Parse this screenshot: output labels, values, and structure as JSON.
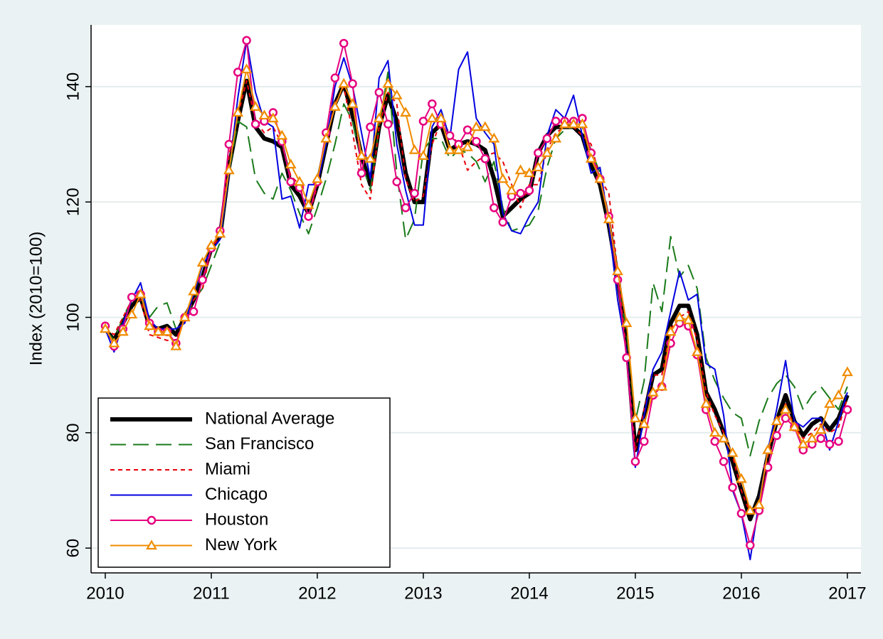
{
  "chart_data": {
    "type": "line",
    "y_label": "Index (2010=100)",
    "x": [
      2010,
      2010.083,
      2010.167,
      2010.25,
      2010.333,
      2010.417,
      2010.5,
      2010.583,
      2010.667,
      2010.75,
      2010.833,
      2010.917,
      2011,
      2011.083,
      2011.167,
      2011.25,
      2011.333,
      2011.417,
      2011.5,
      2011.583,
      2011.667,
      2011.75,
      2011.833,
      2011.917,
      2012,
      2012.083,
      2012.167,
      2012.25,
      2012.333,
      2012.417,
      2012.5,
      2012.583,
      2012.667,
      2012.75,
      2012.833,
      2012.917,
      2013,
      2013.083,
      2013.167,
      2013.25,
      2013.333,
      2013.417,
      2013.5,
      2013.583,
      2013.667,
      2013.75,
      2013.833,
      2013.917,
      2014,
      2014.083,
      2014.167,
      2014.25,
      2014.333,
      2014.417,
      2014.5,
      2014.583,
      2014.667,
      2014.75,
      2014.833,
      2014.917,
      2015,
      2015.083,
      2015.167,
      2015.25,
      2015.333,
      2015.417,
      2015.5,
      2015.583,
      2015.667,
      2015.75,
      2015.833,
      2015.917,
      2016,
      2016.083,
      2016.167,
      2016.25,
      2016.333,
      2016.417,
      2016.5,
      2016.583,
      2016.667,
      2016.75,
      2016.833,
      2016.917,
      2017
    ],
    "series": [
      {
        "name": "National Average",
        "color": "#000000",
        "dash": "solid",
        "marker": "none",
        "values": [
          98,
          96,
          99,
          102,
          103.5,
          98.5,
          98,
          98.5,
          97,
          100,
          103,
          107,
          112,
          114,
          126,
          134,
          141,
          133,
          131,
          130.5,
          129.5,
          123,
          121,
          118,
          123,
          130,
          137,
          140.5,
          135,
          128,
          123,
          133,
          138.5,
          134,
          125,
          120,
          120,
          132,
          133.5,
          129,
          130,
          130.5,
          130,
          129,
          124,
          117.5,
          119,
          120.5,
          121.5,
          128.5,
          131.5,
          133,
          133,
          133,
          131.5,
          126.5,
          123,
          116,
          107,
          96,
          77,
          83,
          90,
          91,
          99,
          102,
          102,
          97,
          87,
          84,
          80,
          75,
          70,
          65,
          69,
          76,
          82,
          86.5,
          82,
          79.5,
          81.5,
          82.5,
          80.5,
          82.5,
          86.5
        ]
      },
      {
        "name": "San Francisco",
        "color": "#1a7a1a",
        "dash": "long",
        "marker": "none",
        "values": [
          98,
          96,
          100,
          103,
          104,
          100,
          102,
          102.5,
          98,
          99,
          103,
          105,
          109,
          113,
          125,
          134,
          133,
          124,
          121.5,
          120.5,
          125,
          122,
          118,
          114.5,
          119,
          124,
          130,
          137,
          134,
          127,
          122,
          133,
          142.5,
          125,
          113.5,
          117,
          129,
          131,
          131,
          127.5,
          129,
          128.5,
          127,
          123.5,
          127,
          119,
          115,
          115.5,
          116,
          118.5,
          126,
          131,
          132.5,
          133,
          133,
          129,
          125,
          117.5,
          106,
          97.5,
          82,
          89,
          106,
          101,
          114,
          107,
          109,
          105,
          93,
          89,
          86,
          83.5,
          82.5,
          76,
          82,
          86,
          88.5,
          90,
          88,
          84,
          86.5,
          88,
          86,
          84,
          88
        ]
      },
      {
        "name": "Miami",
        "color": "#e8000b",
        "dash": "short",
        "marker": "none",
        "values": [
          98,
          97,
          100,
          103,
          103,
          97,
          96.5,
          96,
          96,
          100,
          103,
          105,
          112,
          114,
          128,
          135,
          141,
          134,
          132,
          133,
          130,
          124.5,
          123,
          117,
          123,
          131,
          137,
          140,
          132,
          123,
          120.5,
          133,
          139,
          137,
          124,
          120,
          121,
          130,
          134,
          132,
          130,
          125.5,
          127,
          128,
          128.5,
          127,
          123,
          119,
          123,
          123,
          129,
          132,
          133,
          133,
          131.5,
          130,
          124,
          121.5,
          108,
          94,
          77,
          84,
          90,
          90,
          98,
          100,
          101,
          96,
          87,
          83,
          80,
          76,
          70,
          66,
          68,
          76,
          82,
          85,
          81,
          79,
          80,
          81.5,
          80,
          81,
          86
        ]
      },
      {
        "name": "Chicago",
        "color": "#0000e0",
        "dash": "solid",
        "marker": "none",
        "values": [
          98,
          94,
          99,
          103,
          106,
          99.5,
          98,
          98,
          98,
          99,
          104,
          109,
          111.5,
          113.5,
          125,
          138,
          148,
          139,
          134,
          133,
          120.5,
          121,
          115.5,
          123,
          123,
          130,
          140,
          145,
          140,
          132,
          124,
          141.5,
          144.5,
          130,
          122,
          116,
          116,
          133,
          136,
          131,
          143,
          146,
          134.5,
          132,
          130,
          118,
          115,
          114.5,
          117.5,
          120,
          131.5,
          136,
          134.5,
          138.5,
          131.5,
          125,
          126,
          116,
          103,
          94,
          74,
          83,
          91,
          94,
          101,
          108,
          103,
          104,
          92,
          91,
          83,
          70,
          66,
          58,
          68,
          77,
          84,
          92.5,
          82,
          81,
          82.5,
          82.5,
          77,
          82,
          87
        ]
      },
      {
        "name": "Houston",
        "color": "#e6007e",
        "dash": "solid",
        "marker": "circle",
        "values": [
          98.5,
          95,
          98,
          103.5,
          104,
          99,
          97.5,
          97.5,
          95.5,
          100,
          101,
          106.5,
          112,
          115,
          130,
          142.5,
          148,
          133.5,
          134,
          135.5,
          130.5,
          123.5,
          122.5,
          117.5,
          123.5,
          132,
          141.5,
          147.5,
          140.5,
          125,
          133,
          139,
          133.5,
          123.5,
          119,
          121.5,
          134,
          137,
          133.5,
          131.5,
          130,
          132.5,
          130.5,
          127.5,
          119,
          116.5,
          121,
          121.5,
          122,
          128.5,
          131,
          134,
          134,
          134,
          134.5,
          128.5,
          124,
          117.5,
          106.5,
          93,
          75,
          78.5,
          86.5,
          88,
          95.5,
          99,
          98.5,
          93.5,
          84,
          78.5,
          75,
          70.5,
          66,
          60.5,
          66.5,
          74,
          79.5,
          82.5,
          81,
          77,
          78,
          79,
          78,
          78.5,
          84
        ]
      },
      {
        "name": "New York",
        "color": "#f08c00",
        "dash": "solid",
        "marker": "triangle",
        "values": [
          98,
          95.5,
          97.5,
          100.5,
          104,
          98.5,
          97.5,
          97.5,
          95,
          100,
          104.5,
          109.5,
          112.5,
          114.5,
          125.5,
          135.5,
          143,
          136.5,
          135,
          134.5,
          131.5,
          126.5,
          123.5,
          119.5,
          124,
          131,
          136.5,
          140.5,
          137,
          128,
          127.5,
          134.5,
          140.5,
          138.5,
          135.5,
          129,
          128,
          134.5,
          134.5,
          129,
          129,
          129.5,
          133,
          133,
          131,
          124,
          122,
          125.5,
          125,
          126,
          128.5,
          131,
          133.5,
          133.5,
          133.5,
          127.5,
          124,
          117,
          108,
          99,
          82.5,
          81.5,
          87,
          88,
          97.5,
          100,
          99.5,
          94,
          85,
          80,
          79,
          76.5,
          72,
          66.5,
          67.5,
          77,
          82,
          84,
          81,
          78,
          79,
          80.5,
          85,
          86.5,
          90.5
        ]
      }
    ],
    "xlim": [
      2009.866,
      2017.128
    ],
    "xticks": [
      2010,
      2011,
      2012,
      2013,
      2014,
      2015,
      2016,
      2017
    ],
    "ylim": [
      55.7,
      150.7
    ],
    "yticks": [
      60,
      80,
      100,
      120,
      140
    ],
    "grid": true,
    "legend": "lower left"
  }
}
